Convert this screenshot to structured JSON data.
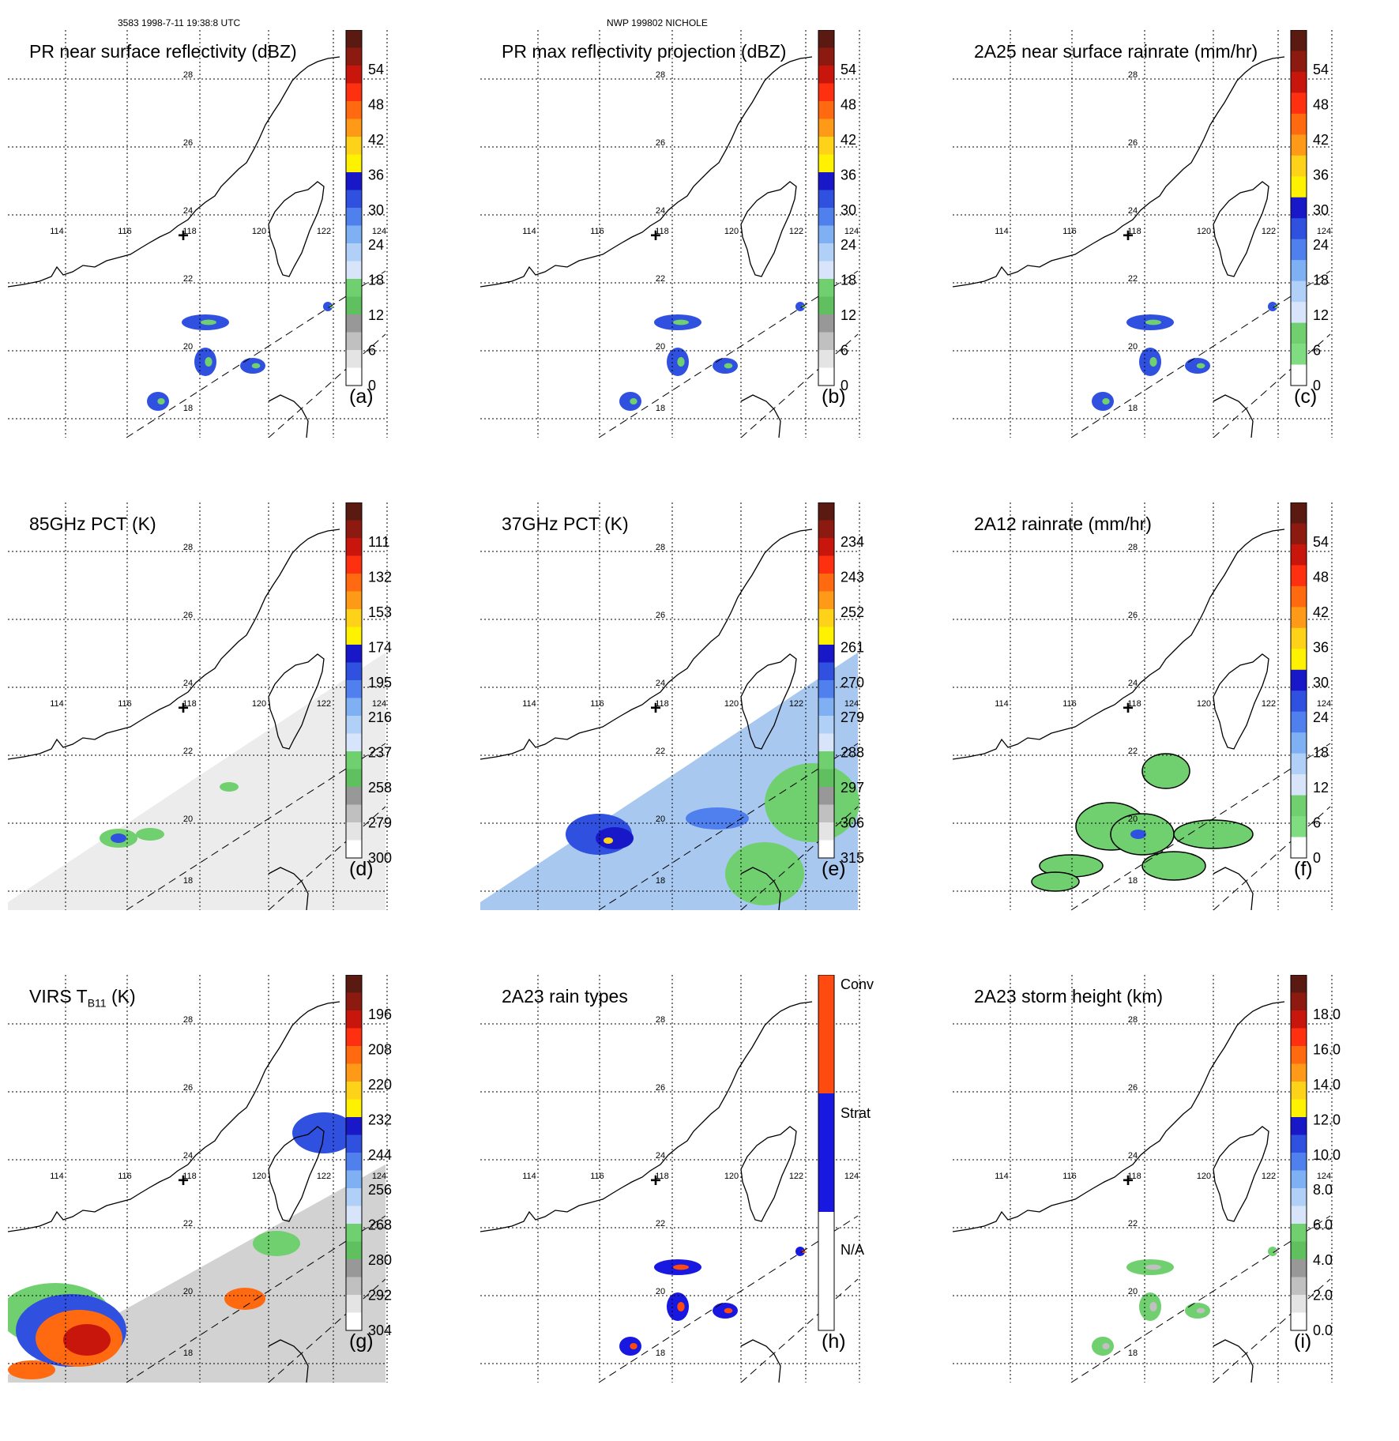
{
  "header": {
    "left": "3583 1998-7-11 19:38:8 UTC",
    "center": "NWP 199802 NICHOLE"
  },
  "map": {
    "lon_labels": [
      "114",
      "116",
      "118",
      "120",
      "122",
      "124"
    ],
    "lat_labels": [
      "28",
      "26",
      "24",
      "22",
      "20",
      "18"
    ],
    "center_marker": "+"
  },
  "panels": [
    {
      "id": "a",
      "title": "PR near surface reflectivity (dBZ)",
      "label": "(a)",
      "ticks": [
        "54",
        "48",
        "42",
        "36",
        "30",
        "24",
        "18",
        "12",
        "6",
        "0"
      ],
      "colors": [
        "#5a1a12",
        "#8c1a10",
        "#c8160c",
        "#ff3010",
        "#ff6a10",
        "#ff9a18",
        "#ffd21a",
        "#fff200",
        "#1818c8",
        "#3050e0",
        "#5080ee",
        "#80b0f4",
        "#b0d0f8",
        "#d8e4fa",
        "#70d070",
        "#60c060",
        "#989898",
        "#c0c0c0",
        "#e4e4e4",
        "#ffffff"
      ],
      "field": "sparse"
    },
    {
      "id": "b",
      "title": "PR max reflectivity projection (dBZ)",
      "label": "(b)",
      "ticks": [
        "54",
        "48",
        "42",
        "36",
        "30",
        "24",
        "18",
        "12",
        "6",
        "0"
      ],
      "colors": [
        "#5a1a12",
        "#8c1a10",
        "#c8160c",
        "#ff3010",
        "#ff6a10",
        "#ff9a18",
        "#ffd21a",
        "#fff200",
        "#1818c8",
        "#3050e0",
        "#5080ee",
        "#80b0f4",
        "#b0d0f8",
        "#d8e4fa",
        "#70d070",
        "#60c060",
        "#989898",
        "#c0c0c0",
        "#e4e4e4",
        "#ffffff"
      ],
      "field": "sparse"
    },
    {
      "id": "c",
      "title": "2A25 near surface rainrate (mm/hr)",
      "label": "(c)",
      "ticks": [
        "54",
        "48",
        "42",
        "36",
        "30",
        "24",
        "18",
        "12",
        "6",
        "0"
      ],
      "colors": [
        "#5a1a12",
        "#8c1a10",
        "#c8160c",
        "#ff3010",
        "#ff6a10",
        "#ff9a18",
        "#ffd21a",
        "#fff200",
        "#1818c8",
        "#3050e0",
        "#5080ee",
        "#80b0f4",
        "#b0d0f8",
        "#d8e4fa",
        "#70d070",
        "#80dc80",
        "#ffffff"
      ],
      "field": "sparse"
    },
    {
      "id": "d",
      "title": "85GHz PCT (K)",
      "label": "(d)",
      "ticks": [
        "111",
        "132",
        "153",
        "174",
        "195",
        "216",
        "237",
        "258",
        "279",
        "300"
      ],
      "colors": [
        "#5a1a12",
        "#8c1a10",
        "#c8160c",
        "#ff3010",
        "#ff6a10",
        "#ff9a18",
        "#ffd21a",
        "#fff200",
        "#1818c8",
        "#3050e0",
        "#5080ee",
        "#80b0f4",
        "#b0d0f8",
        "#d8e4fa",
        "#70d070",
        "#60c060",
        "#989898",
        "#c0c0c0",
        "#e4e4e4",
        "#ffffff"
      ],
      "field": "swath-gray"
    },
    {
      "id": "e",
      "title": "37GHz PCT (K)",
      "label": "(e)",
      "ticks": [
        "234",
        "243",
        "252",
        "261",
        "270",
        "279",
        "288",
        "297",
        "306",
        "315"
      ],
      "colors": [
        "#5a1a12",
        "#8c1a10",
        "#c8160c",
        "#ff3010",
        "#ff6a10",
        "#ff9a18",
        "#ffd21a",
        "#fff200",
        "#1818c8",
        "#3050e0",
        "#5080ee",
        "#80b0f4",
        "#b0d0f8",
        "#d8e4fa",
        "#70d070",
        "#60c060",
        "#989898",
        "#c0c0c0",
        "#e4e4e4",
        "#ffffff"
      ],
      "field": "swath-blue"
    },
    {
      "id": "f",
      "title": "2A12 rainrate (mm/hr)",
      "label": "(f)",
      "ticks": [
        "54",
        "48",
        "42",
        "36",
        "30",
        "24",
        "18",
        "12",
        "6",
        "0"
      ],
      "colors": [
        "#5a1a12",
        "#8c1a10",
        "#c8160c",
        "#ff3010",
        "#ff6a10",
        "#ff9a18",
        "#ffd21a",
        "#fff200",
        "#1818c8",
        "#3050e0",
        "#5080ee",
        "#80b0f4",
        "#b0d0f8",
        "#d8e4fa",
        "#70d070",
        "#80dc80",
        "#ffffff"
      ],
      "field": "green"
    },
    {
      "id": "g",
      "title": "VIRS T",
      "title_sub": "B11",
      "title_tail": " (K)",
      "label": "(g)",
      "ticks": [
        "196",
        "208",
        "220",
        "232",
        "244",
        "256",
        "268",
        "280",
        "292",
        "304"
      ],
      "colors": [
        "#5a1a12",
        "#8c1a10",
        "#c8160c",
        "#ff3010",
        "#ff6a10",
        "#ff9a18",
        "#ffd21a",
        "#fff200",
        "#1818c8",
        "#3050e0",
        "#5080ee",
        "#80b0f4",
        "#b0d0f8",
        "#d8e4fa",
        "#70d070",
        "#60c060",
        "#989898",
        "#c0c0c0",
        "#e4e4e4",
        "#ffffff"
      ],
      "field": "swath-ir"
    },
    {
      "id": "h",
      "title": "2A23 rain types",
      "label": "(h)",
      "ticks": [
        "Conv",
        "Strat",
        "N/A"
      ],
      "colors": [
        "#ff4a10",
        "#1818e0",
        "#ffffff"
      ],
      "field": "raintype"
    },
    {
      "id": "i",
      "title": "2A23 storm height (km)",
      "label": "(i)",
      "ticks": [
        "18.0",
        "16.0",
        "14.0",
        "12.0",
        "10.0",
        "8.0",
        "6.0",
        "4.0",
        "2.0",
        "0.0"
      ],
      "colors": [
        "#5a1a12",
        "#8c1a10",
        "#c8160c",
        "#ff3010",
        "#ff6a10",
        "#ff9a18",
        "#ffd21a",
        "#fff200",
        "#1818c8",
        "#3050e0",
        "#5080ee",
        "#80b0f4",
        "#b0d0f8",
        "#d8e4fa",
        "#70d070",
        "#60c060",
        "#989898",
        "#c0c0c0",
        "#e4e4e4",
        "#ffffff"
      ],
      "field": "sparse-light"
    }
  ]
}
